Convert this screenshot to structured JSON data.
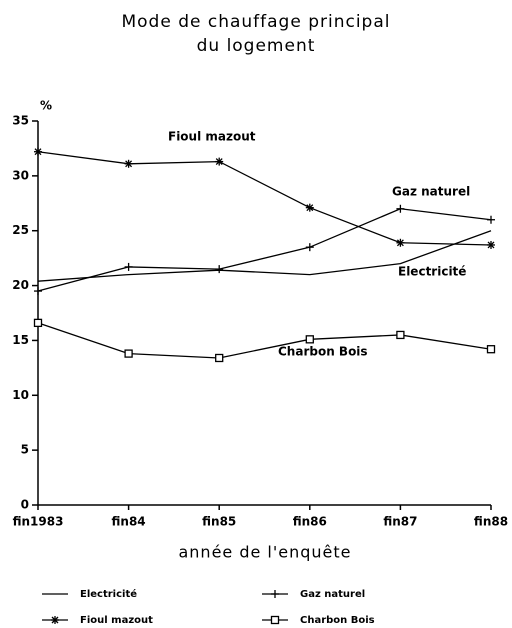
{
  "chart_data": {
    "type": "line",
    "title": [
      "Mode de chauffage principal",
      "du logement"
    ],
    "y_label": "%",
    "x_label": "année de l'enquête",
    "categories": [
      "fin1983",
      "fin84",
      "fin85",
      "fin86",
      "fin87",
      "fin88"
    ],
    "ylim": [
      0,
      35
    ],
    "yticks": [
      0,
      5,
      10,
      15,
      20,
      25,
      30,
      35
    ],
    "series": [
      {
        "name": "Electricité",
        "color": "#000000",
        "marker": "none",
        "values": [
          20.4,
          21.0,
          21.4,
          21.0,
          22.0,
          25.0
        ]
      },
      {
        "name": "Gaz naturel",
        "color": "#000000",
        "marker": "plus",
        "values": [
          19.5,
          21.7,
          21.5,
          23.5,
          27.0,
          26.0
        ]
      },
      {
        "name": "Fioul mazout",
        "color": "#000000",
        "marker": "asterisk",
        "values": [
          32.2,
          31.1,
          31.3,
          27.1,
          23.9,
          23.7
        ]
      },
      {
        "name": "Charbon Bois",
        "color": "#000000",
        "marker": "square",
        "values": [
          16.6,
          13.8,
          13.4,
          15.1,
          15.5,
          14.2
        ]
      }
    ]
  }
}
